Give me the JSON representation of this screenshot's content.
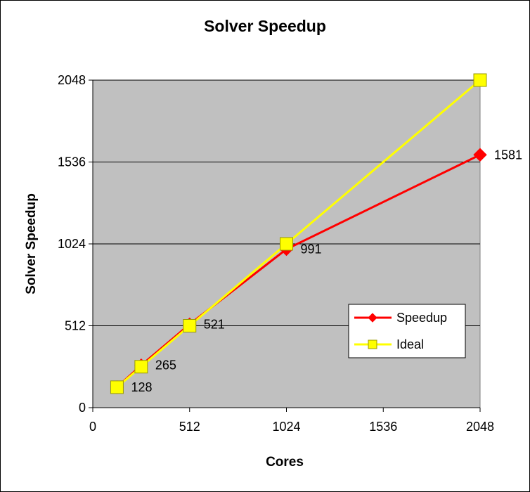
{
  "chart_data": {
    "type": "line",
    "title": "Solver Speedup",
    "xlabel": "Cores",
    "ylabel": "Solver Speedup",
    "xlim": [
      0,
      2048
    ],
    "ylim": [
      0,
      2048
    ],
    "xticks": [
      0,
      512,
      1024,
      1536,
      2048
    ],
    "yticks": [
      0,
      512,
      1024,
      1536,
      2048
    ],
    "xtick_labels": [
      "0",
      "512",
      "1024",
      "1536",
      "2048"
    ],
    "ytick_labels": [
      "0",
      "512",
      "1024",
      "1536",
      "2048"
    ],
    "grid": "horizontal",
    "legend_position": "right",
    "x": [
      128,
      256,
      512,
      1024,
      2048
    ],
    "series": [
      {
        "name": "Speedup",
        "values": [
          128,
          265,
          521,
          991,
          1581
        ],
        "color": "#ff0000",
        "marker": "diamond",
        "data_labels": [
          "128",
          "265",
          "521",
          "991",
          "1581"
        ]
      },
      {
        "name": "Ideal",
        "values": [
          128,
          256,
          512,
          1024,
          2048
        ],
        "color": "#ffff00",
        "marker": "square"
      }
    ],
    "plot_background": "#c0c0c0"
  }
}
